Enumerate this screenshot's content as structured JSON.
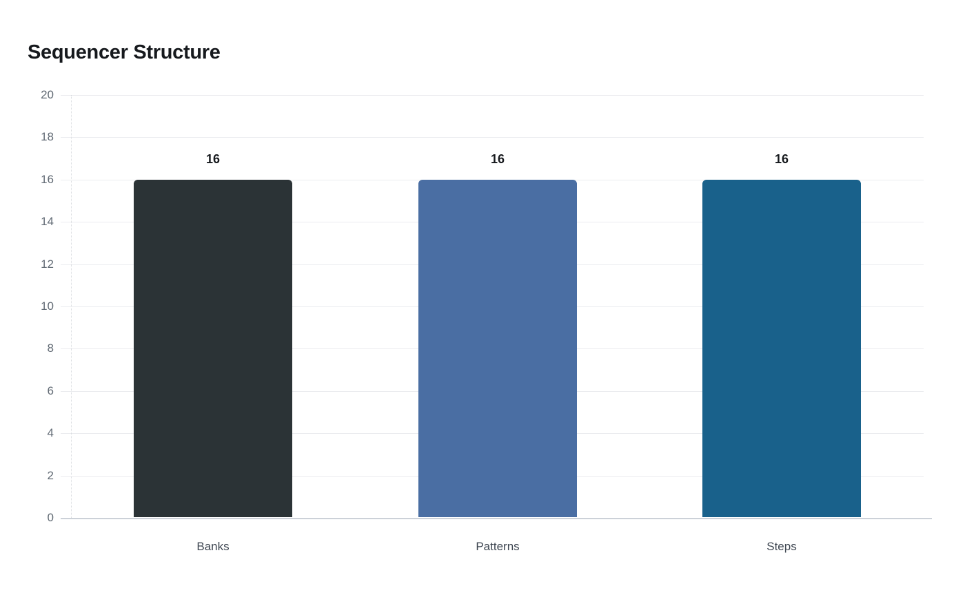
{
  "chart_data": {
    "type": "bar",
    "title": "Sequencer Structure",
    "categories": [
      "Banks",
      "Patterns",
      "Steps"
    ],
    "values": [
      16,
      16,
      16
    ],
    "value_labels": [
      "16",
      "16",
      "16"
    ],
    "bar_colors": [
      "#2b3336",
      "#4a6ea3",
      "#19618b"
    ],
    "ylim": [
      0,
      20
    ],
    "yticks": [
      0,
      2,
      4,
      6,
      8,
      10,
      12,
      14,
      16,
      18,
      20
    ],
    "ytick_labels": [
      "0",
      "2",
      "4",
      "6",
      "8",
      "10",
      "12",
      "14",
      "16",
      "18",
      "20"
    ],
    "xlabel": "",
    "ylabel": "",
    "grid": true,
    "legend_position": "none"
  },
  "colors": {
    "background": "#ffffff",
    "gridline": "#ebecef",
    "baseline": "#ccd1d8",
    "axis_dotted": "#d8dbdf",
    "tick_label": "#616a74",
    "category_label": "#3e4651",
    "value_label": "#16191d",
    "title": "#16191d"
  }
}
